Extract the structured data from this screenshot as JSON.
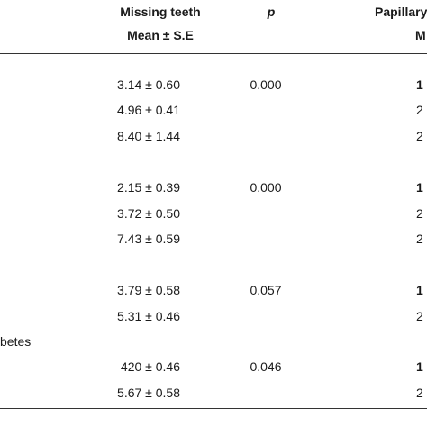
{
  "header": {
    "missing_teeth": "Missing teeth",
    "mean_se": "Mean ± S.E",
    "p": "p",
    "papillary": "Papillary",
    "m": "M"
  },
  "section_label": "betes",
  "groups": [
    {
      "rows": [
        {
          "value": "3.14 ± 0.60",
          "p": "0.000",
          "edge": "1"
        },
        {
          "value": "4.96 ± 0.41",
          "p": "",
          "edge": "2"
        },
        {
          "value": "8.40 ± 1.44",
          "p": "",
          "edge": "2"
        }
      ]
    },
    {
      "rows": [
        {
          "value": "2.15 ± 0.39",
          "p": "0.000",
          "edge": "1"
        },
        {
          "value": "3.72 ± 0.50",
          "p": "",
          "edge": "2"
        },
        {
          "value": "7.43 ± 0.59",
          "p": "",
          "edge": "2"
        }
      ]
    },
    {
      "rows": [
        {
          "value": "3.79 ± 0.58",
          "p": "0.057",
          "edge": "1"
        },
        {
          "value": "5.31 ± 0.46",
          "p": "",
          "edge": "2"
        }
      ]
    },
    {
      "rows": [
        {
          "value": "420 ± 0.46",
          "p": "0.046",
          "edge": "1"
        },
        {
          "value": "5.67 ± 0.58",
          "p": "",
          "edge": "2"
        }
      ]
    }
  ]
}
